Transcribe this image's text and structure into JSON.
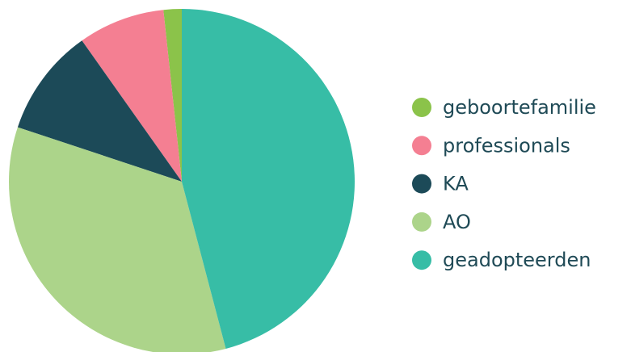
{
  "chart_data": {
    "type": "pie",
    "categories": [
      "geboortefamilie",
      "professionals",
      "KA",
      "AO",
      "geadopteerden"
    ],
    "values": [
      1.7,
      8.1,
      10.1,
      34.2,
      45.9
    ],
    "colors": [
      "#8bc34a",
      "#f47f92",
      "#1c4a58",
      "#acd48a",
      "#37bda6"
    ],
    "legend": "right"
  }
}
